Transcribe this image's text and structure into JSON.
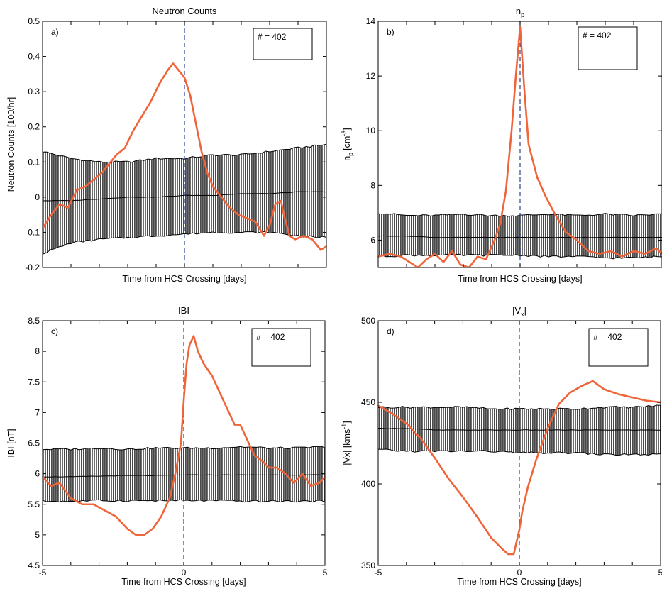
{
  "colors": {
    "signal": "#f0643a",
    "band": "#9a9a9a",
    "mean": "#000000",
    "crossing": "#2b3f8e"
  },
  "chart_data": [
    {
      "type": "line",
      "panel_letter": "a)",
      "title": "Neutron Counts",
      "xlabel": "Time from HCS Crossing [days]",
      "ylabel": "Neutron Counts [100/hr]",
      "xlim": [
        -5,
        5
      ],
      "ylim": [
        -0.2,
        0.5
      ],
      "y_ticks": [
        "-0.2",
        "-0.1",
        "0",
        "0.1",
        "0.2",
        "0.3",
        "0.4",
        "0.5"
      ],
      "x_ticks": [],
      "count_label": "# = 402",
      "crossing_x": 0,
      "band_x": [
        -5,
        -4,
        -3,
        -2,
        -1,
        0,
        1,
        2,
        3,
        4,
        5
      ],
      "band_upper": [
        0.13,
        0.11,
        0.1,
        0.1,
        0.11,
        0.11,
        0.12,
        0.12,
        0.13,
        0.14,
        0.15
      ],
      "band_mean": [
        -0.01,
        -0.01,
        -0.005,
        0,
        0,
        0.005,
        0.005,
        0.01,
        0.01,
        0.015,
        0.015
      ],
      "band_lower": [
        -0.16,
        -0.13,
        -0.12,
        -0.115,
        -0.11,
        -0.105,
        -0.1,
        -0.1,
        -0.1,
        -0.11,
        -0.115
      ],
      "signal_x": [
        -5,
        -4.7,
        -4.4,
        -4.1,
        -3.8,
        -3.5,
        -3.2,
        -2.9,
        -2.7,
        -2.4,
        -2.1,
        -1.8,
        -1.5,
        -1.2,
        -0.9,
        -0.6,
        -0.4,
        -0.2,
        0,
        0.2,
        0.4,
        0.6,
        0.8,
        1.0,
        1.3,
        1.6,
        1.9,
        2.2,
        2.5,
        2.8,
        3.0,
        3.2,
        3.4,
        3.5,
        3.7,
        3.9,
        4.2,
        4.5,
        4.8,
        5
      ],
      "signal_y": [
        -0.09,
        -0.05,
        -0.02,
        -0.03,
        0.02,
        0.03,
        0.05,
        0.07,
        0.09,
        0.12,
        0.14,
        0.19,
        0.23,
        0.27,
        0.32,
        0.36,
        0.38,
        0.36,
        0.34,
        0.29,
        0.21,
        0.13,
        0.07,
        0.03,
        0.0,
        -0.03,
        -0.05,
        -0.06,
        -0.07,
        -0.11,
        -0.08,
        -0.02,
        -0.01,
        -0.05,
        -0.11,
        -0.12,
        -0.11,
        -0.12,
        -0.15,
        -0.14
      ]
    },
    {
      "type": "line",
      "panel_letter": "b)",
      "title": "n",
      "title_sub": "p",
      "xlabel": "Time from HCS Crossing [days]",
      "ylabel": "n",
      "ylabel_sub": "p",
      "ylabel_unit": "[cm",
      "ylabel_sup": "-3",
      "ylabel_close": "]",
      "xlim": [
        -5,
        5
      ],
      "ylim": [
        5,
        14
      ],
      "y_ticks": [
        "6",
        "8",
        "10",
        "12",
        "14"
      ],
      "x_ticks": [],
      "count_label": "# = 402",
      "crossing_x": 0,
      "band_x": [
        -5,
        -4,
        -3,
        -2,
        -1,
        0,
        1,
        2,
        3,
        4,
        5
      ],
      "band_upper": [
        7.0,
        6.9,
        6.9,
        6.95,
        6.9,
        6.9,
        6.95,
        6.9,
        6.95,
        6.9,
        6.95
      ],
      "band_mean": [
        6.15,
        6.15,
        6.1,
        6.1,
        6.1,
        6.1,
        6.1,
        6.1,
        6.1,
        6.1,
        6.1
      ],
      "band_lower": [
        5.4,
        5.45,
        5.45,
        5.45,
        5.45,
        5.45,
        5.4,
        5.4,
        5.35,
        5.35,
        5.4
      ],
      "signal_x": [
        -5,
        -4.6,
        -4.2,
        -3.9,
        -3.6,
        -3.3,
        -3.0,
        -2.7,
        -2.4,
        -2.1,
        -1.8,
        -1.5,
        -1.2,
        -0.9,
        -0.7,
        -0.5,
        -0.3,
        -0.15,
        0,
        0.15,
        0.3,
        0.6,
        0.9,
        1.2,
        1.6,
        2.0,
        2.4,
        2.8,
        3.2,
        3.6,
        4.0,
        4.4,
        4.8,
        5
      ],
      "signal_y": [
        5.4,
        5.5,
        5.4,
        5.2,
        5.0,
        5.3,
        5.5,
        5.2,
        5.6,
        5.1,
        5.0,
        5.4,
        5.3,
        6.0,
        6.6,
        7.8,
        10.0,
        12.0,
        13.8,
        11.5,
        9.5,
        8.3,
        7.6,
        7.0,
        6.3,
        6.0,
        5.6,
        5.5,
        5.6,
        5.4,
        5.6,
        5.5,
        5.7,
        5.5
      ]
    },
    {
      "type": "line",
      "panel_letter": "c)",
      "title": "IBI",
      "xlabel": "Time from HCS Crossing [days]",
      "ylabel": "IBI [nT]",
      "xlim": [
        -5,
        5
      ],
      "ylim": [
        4.5,
        8.5
      ],
      "y_ticks": [
        "4.5",
        "5",
        "5.5",
        "6",
        "6.5",
        "7",
        "7.5",
        "8",
        "8.5"
      ],
      "x_ticks": [
        "-5",
        "0",
        "5"
      ],
      "count_label": "# = 402",
      "crossing_x": 0,
      "band_x": [
        -5,
        -4,
        -3,
        -2,
        -1,
        0,
        1,
        2,
        3,
        4,
        5
      ],
      "band_upper": [
        6.4,
        6.4,
        6.42,
        6.4,
        6.42,
        6.42,
        6.42,
        6.44,
        6.42,
        6.42,
        6.44
      ],
      "band_mean": [
        5.95,
        5.95,
        5.96,
        5.97,
        5.97,
        5.98,
        5.98,
        5.98,
        5.98,
        5.98,
        5.98
      ],
      "band_lower": [
        5.55,
        5.55,
        5.56,
        5.56,
        5.56,
        5.56,
        5.56,
        5.55,
        5.55,
        5.55,
        5.55
      ],
      "signal_x": [
        -5,
        -4.7,
        -4.4,
        -4.0,
        -3.6,
        -3.2,
        -2.8,
        -2.4,
        -2.0,
        -1.7,
        -1.4,
        -1.1,
        -0.8,
        -0.5,
        -0.3,
        -0.1,
        0.0,
        0.1,
        0.2,
        0.35,
        0.5,
        0.7,
        1.0,
        1.3,
        1.6,
        1.8,
        2.0,
        2.2,
        2.5,
        2.8,
        3.0,
        3.3,
        3.6,
        3.9,
        4.2,
        4.5,
        4.8,
        5
      ],
      "signal_y": [
        5.95,
        5.8,
        5.85,
        5.6,
        5.5,
        5.5,
        5.4,
        5.3,
        5.1,
        5.0,
        5.0,
        5.1,
        5.3,
        5.6,
        6.0,
        6.5,
        7.2,
        7.8,
        8.1,
        8.25,
        8.0,
        7.8,
        7.6,
        7.3,
        7.0,
        6.8,
        6.8,
        6.6,
        6.3,
        6.2,
        6.1,
        6.1,
        6.0,
        5.85,
        6.0,
        5.8,
        5.85,
        5.95
      ]
    },
    {
      "type": "line",
      "panel_letter": "d)",
      "title": "|V",
      "title_sub": "x",
      "title_close": "|",
      "xlabel": "Time from HCS Crossing [days]",
      "ylabel": "|Vx| [kms",
      "ylabel_sup": "-1",
      "ylabel_close": "]",
      "xlim": [
        -5,
        5
      ],
      "ylim": [
        350,
        500
      ],
      "y_ticks": [
        "350",
        "400",
        "450",
        "500"
      ],
      "x_ticks": [
        "-5",
        "0",
        "5"
      ],
      "count_label": "# = 402",
      "crossing_x": 0,
      "band_x": [
        -5,
        -4,
        -3,
        -2,
        -1,
        0,
        1,
        2,
        3,
        4,
        5
      ],
      "band_upper": [
        447,
        447,
        447,
        447,
        446,
        446,
        446,
        446,
        447,
        447,
        448
      ],
      "band_mean": [
        434,
        434,
        433,
        433,
        433,
        433,
        433,
        433,
        433,
        433,
        433
      ],
      "band_lower": [
        421,
        420,
        420,
        420,
        420,
        419,
        419,
        419,
        418,
        418,
        418
      ],
      "signal_x": [
        -5,
        -4.5,
        -4.0,
        -3.5,
        -3.0,
        -2.5,
        -2.0,
        -1.5,
        -1.0,
        -0.6,
        -0.4,
        -0.2,
        0.0,
        0.1,
        0.3,
        0.6,
        1.0,
        1.4,
        1.8,
        2.2,
        2.6,
        3.0,
        3.5,
        4.0,
        4.5,
        5
      ],
      "signal_y": [
        448,
        443,
        437,
        428,
        416,
        403,
        392,
        380,
        367,
        360,
        357,
        357,
        372,
        383,
        398,
        415,
        434,
        449,
        456,
        460,
        463,
        458,
        455,
        453,
        451,
        450
      ]
    }
  ]
}
